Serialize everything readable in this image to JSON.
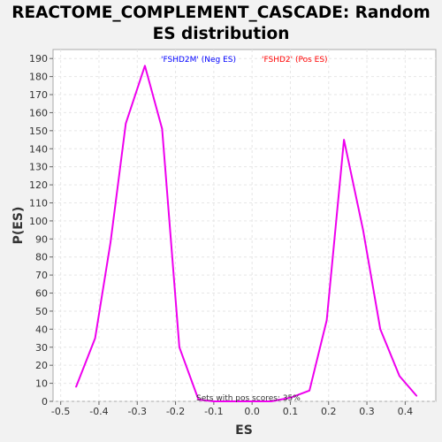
{
  "chart_data": {
    "type": "line",
    "title_line1": "REACTOME_COMPLEMENT_CASCADE: Random",
    "title_line2": "ES distribution",
    "xlabel": "ES",
    "ylabel": "P(ES)",
    "xlim": [
      -0.52,
      0.48
    ],
    "ylim": [
      0,
      195
    ],
    "x_ticks": [
      -0.5,
      -0.4,
      -0.3,
      -0.2,
      -0.1,
      0.0,
      0.1,
      0.2,
      0.3,
      0.4
    ],
    "x_tick_labels": [
      "-0.5",
      "-0.4",
      "-0.3",
      "-0.2",
      "-0.1",
      "0.0",
      "0.1",
      "0.2",
      "0.3",
      "0.4"
    ],
    "y_ticks": [
      0,
      10,
      20,
      30,
      40,
      50,
      60,
      70,
      80,
      90,
      100,
      110,
      120,
      130,
      140,
      150,
      160,
      170,
      180,
      190
    ],
    "grid": true,
    "legend": [
      {
        "label": "'FSHD2M' (Neg ES)",
        "color": "#0000ff"
      },
      {
        "label": "'FSHD2' (Pos ES)",
        "color": "#ff0000"
      }
    ],
    "annotation": "Sets with pos scores: 35%",
    "series": [
      {
        "color": "#ee00ee",
        "x": [
          -0.46,
          -0.41,
          -0.37,
          -0.33,
          -0.28,
          -0.235,
          -0.19,
          -0.14,
          -0.1,
          -0.05,
          0.0,
          0.05,
          0.1,
          0.15,
          0.195,
          0.24,
          0.29,
          0.335,
          0.385,
          0.43
        ],
        "y": [
          8,
          35,
          88,
          154,
          186,
          151,
          30,
          1,
          0,
          0,
          0,
          0,
          2,
          6,
          45,
          145,
          95,
          40,
          14,
          3
        ]
      }
    ]
  }
}
